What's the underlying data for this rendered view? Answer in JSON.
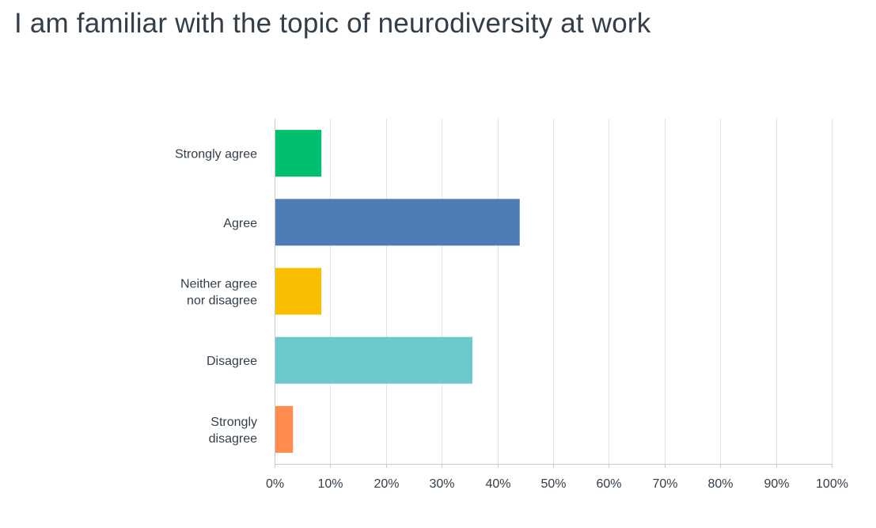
{
  "header": {
    "title": "I am familiar with the topic of neurodiversity at work"
  },
  "chart_data": {
    "type": "bar",
    "orientation": "horizontal",
    "title": "I am familiar with the topic of neurodiversity at work",
    "categories": [
      [
        "Strongly agree"
      ],
      [
        "Agree"
      ],
      [
        "Neither agree",
        "nor disagree"
      ],
      [
        "Disagree"
      ],
      [
        "Strongly",
        "disagree"
      ]
    ],
    "values": [
      8.4,
      44.0,
      8.4,
      35.5,
      3.3
    ],
    "colors": [
      "#00bf6f",
      "#507cb6",
      "#f9be00",
      "#6bc8cd",
      "#ff8b4f"
    ],
    "value_unit": "%",
    "xlim": [
      0,
      100
    ],
    "xticks": [
      "0%",
      "10%",
      "20%",
      "30%",
      "40%",
      "50%",
      "60%",
      "70%",
      "80%",
      "90%",
      "100%"
    ],
    "grid": "vertical",
    "legend": "none",
    "xlabel": "",
    "ylabel": ""
  }
}
